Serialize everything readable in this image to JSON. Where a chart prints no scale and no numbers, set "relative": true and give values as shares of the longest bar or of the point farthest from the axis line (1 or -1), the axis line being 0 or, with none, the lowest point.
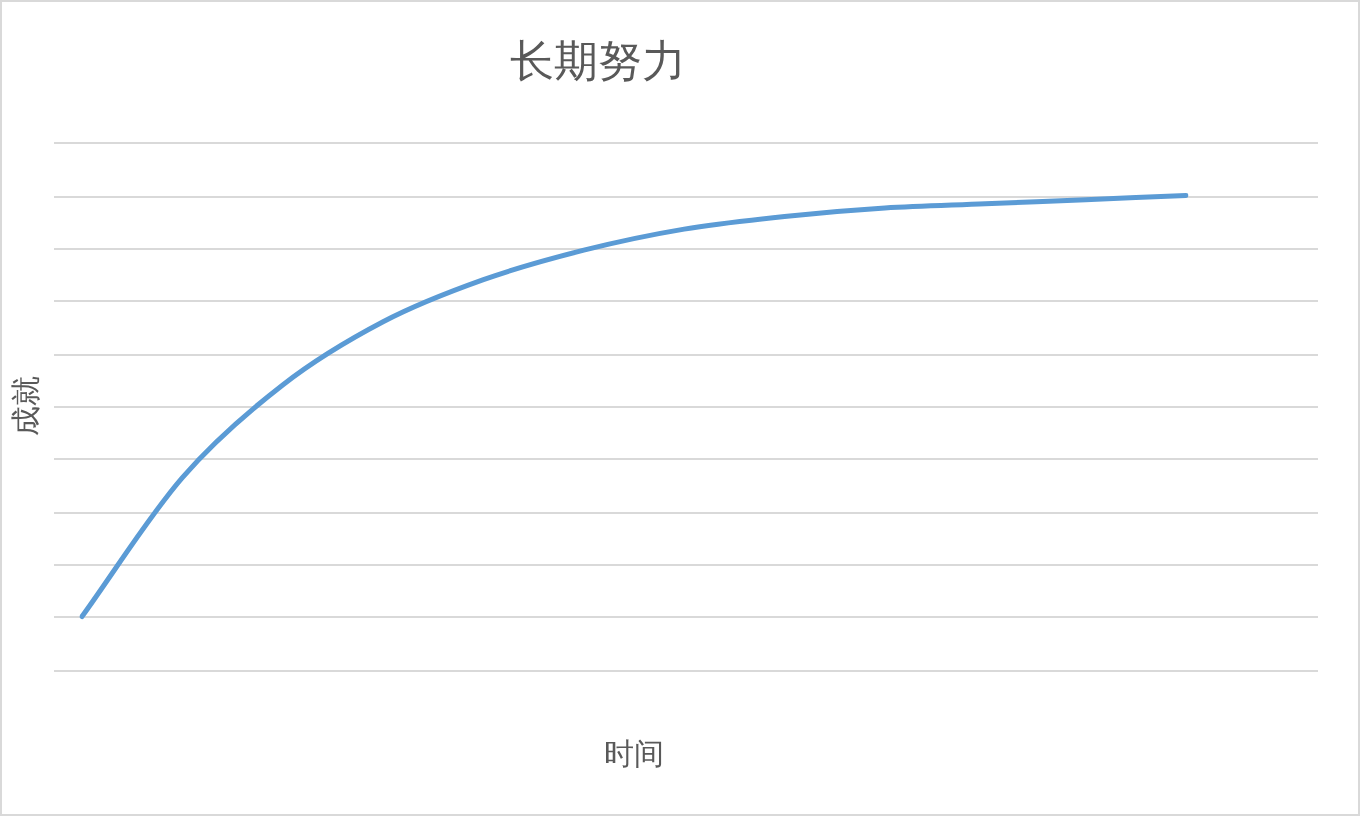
{
  "chart_data": {
    "type": "line",
    "title": "长期努力",
    "xlabel": "时间",
    "ylabel": "成就",
    "relative": true,
    "grid": "y",
    "legend": false,
    "marker": "none",
    "line_style": "solid",
    "categories": [
      null,
      null,
      null,
      null,
      null,
      null,
      null,
      null,
      null,
      null,
      null,
      null
    ],
    "series": [
      {
        "color": "#5b9bd5",
        "values": [
          0,
          0.33,
          0.55,
          0.7,
          0.8,
          0.87,
          0.92,
          0.95,
          0.97,
          0.98,
          0.99,
          1
        ]
      }
    ]
  }
}
